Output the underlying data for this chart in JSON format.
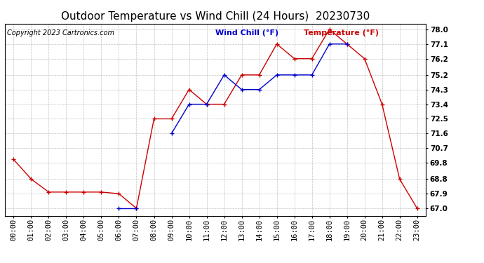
{
  "title": "Outdoor Temperature vs Wind Chill (24 Hours)  20230730",
  "copyright": "Copyright 2023 Cartronics.com",
  "legend_windchill": "Wind Chill (°F)",
  "legend_temp": "Temperature (°F)",
  "x_labels": [
    "00:00",
    "01:00",
    "02:00",
    "03:00",
    "04:00",
    "05:00",
    "06:00",
    "07:00",
    "08:00",
    "09:00",
    "10:00",
    "11:00",
    "12:00",
    "13:00",
    "14:00",
    "15:00",
    "16:00",
    "17:00",
    "18:00",
    "19:00",
    "20:00",
    "21:00",
    "22:00",
    "23:00"
  ],
  "y_ticks": [
    67.0,
    67.9,
    68.8,
    69.8,
    70.7,
    71.6,
    72.5,
    73.4,
    74.3,
    75.2,
    76.2,
    77.1,
    78.0
  ],
  "ylim": [
    66.55,
    78.35
  ],
  "temperature": [
    70.0,
    68.8,
    68.0,
    68.0,
    68.0,
    68.0,
    67.9,
    67.0,
    72.5,
    72.5,
    74.3,
    73.4,
    73.4,
    75.2,
    75.2,
    77.1,
    76.2,
    76.2,
    78.0,
    77.1,
    76.2,
    73.4,
    68.8,
    67.0
  ],
  "windchill": [
    null,
    null,
    null,
    null,
    null,
    null,
    67.0,
    67.0,
    null,
    71.6,
    73.4,
    73.4,
    75.2,
    74.3,
    74.3,
    75.2,
    75.2,
    75.2,
    77.1,
    77.1,
    null,
    null,
    null,
    null
  ],
  "temp_color": "#cc0000",
  "windchill_color": "#0000cc",
  "bg_color": "#ffffff",
  "grid_color": "#bbbbbb",
  "title_fontsize": 11,
  "copyright_fontsize": 7,
  "legend_fontsize": 8,
  "tick_fontsize": 7.5
}
